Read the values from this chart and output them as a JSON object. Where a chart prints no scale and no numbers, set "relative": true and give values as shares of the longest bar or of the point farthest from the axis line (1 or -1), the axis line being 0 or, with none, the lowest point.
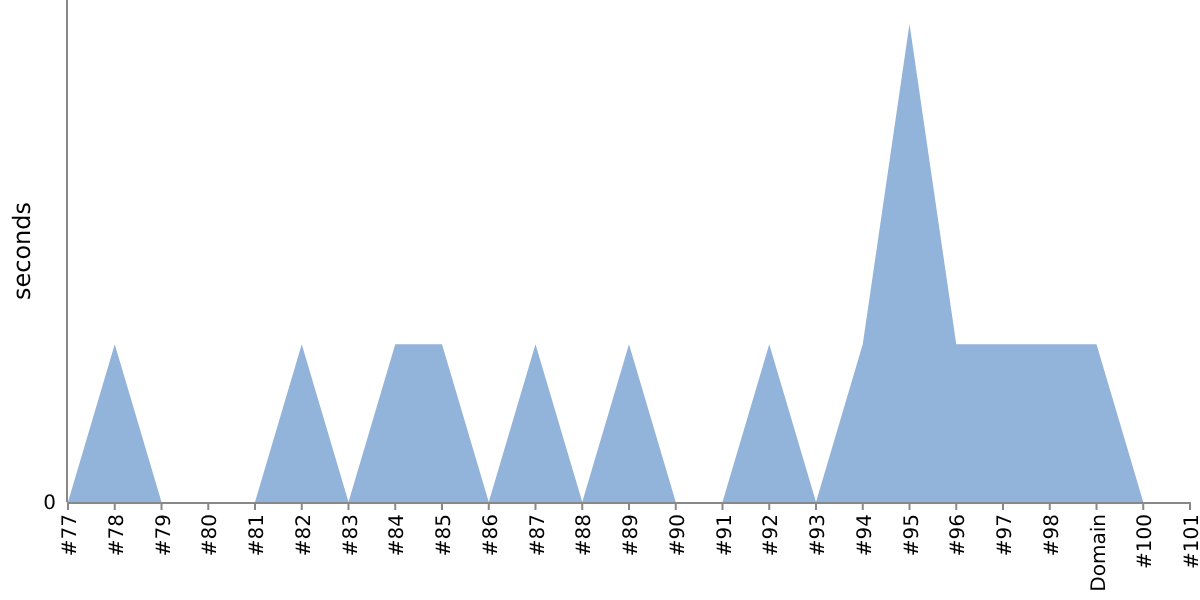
{
  "chart_data": {
    "type": "area",
    "ylabel": "seconds",
    "relative": true,
    "annotations": [
      "0"
    ],
    "categories": [
      "#77",
      "#78",
      "#79",
      "#80",
      "#81",
      "#82",
      "#83",
      "#84",
      "#85",
      "#86",
      "#87",
      "#88",
      "#89",
      "#90",
      "#91",
      "#92",
      "#93",
      "#94",
      "#95",
      "#96",
      "#97",
      "#98",
      "Domain",
      "#100",
      "#101"
    ],
    "series": [
      {
        "color": "#92b3da",
        "values": [
          0,
          0.33,
          0,
          0,
          0,
          0.33,
          0,
          0.33,
          0.33,
          0,
          0.33,
          0,
          0.33,
          0,
          0,
          0.33,
          0,
          0.33,
          1,
          0.33,
          0.33,
          0.33,
          0.33,
          0,
          0
        ]
      }
    ]
  }
}
